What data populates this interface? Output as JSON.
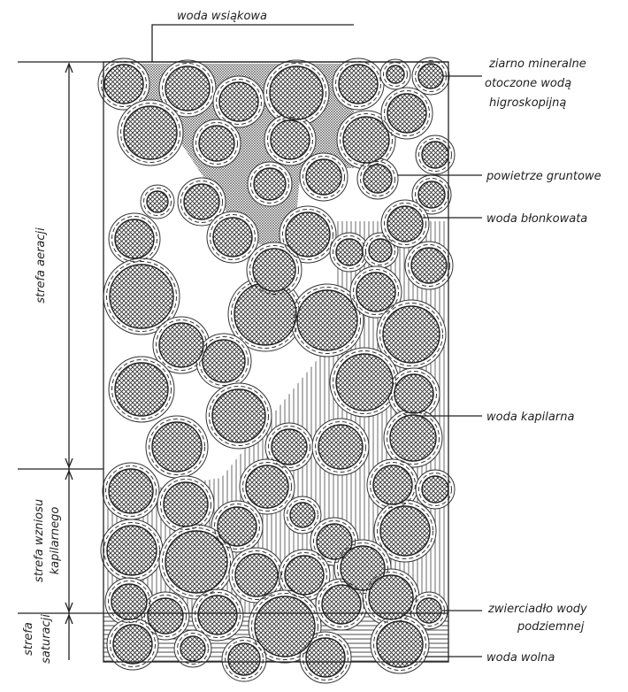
{
  "title": "woda wsiąkowa",
  "labels": {
    "grain": [
      "ziarno mineralne",
      "otoczone wodą",
      "higroskopijną"
    ],
    "air": "powietrze gruntowe",
    "film": "woda błonkowata",
    "capillary": "woda kapilarna",
    "water_table": [
      "zwierciadło wody",
      "podziemnej"
    ],
    "free": "woda wolna"
  },
  "zones": {
    "aeration": "strefa aeracji",
    "capillary_rise": [
      "strefa wzniosu",
      "kapilarnego"
    ],
    "saturation": [
      "strefa",
      "saturacji"
    ]
  }
}
